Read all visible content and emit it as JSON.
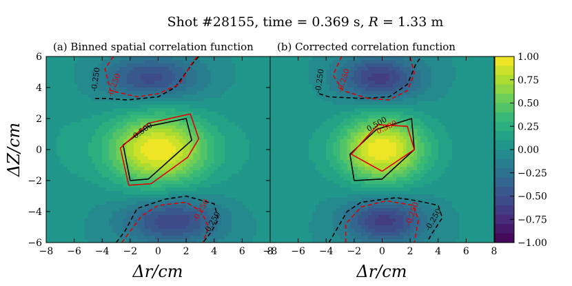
{
  "figure": {
    "title": "Shot #28155, time = 0.369 s, R = 1.33 m",
    "title_parts": {
      "prefix": "Shot #28155, time = 0.369 s, ",
      "var": "R",
      "suffix": " = 1.33 m"
    }
  },
  "chart_data": [
    {
      "type": "heatmap",
      "title": "(a) Binned spatial correlation function",
      "xlabel": "Δr/cm",
      "ylabel": "ΔZ/cm",
      "xlim": [
        -8,
        8
      ],
      "ylim": [
        -6,
        6
      ],
      "xticks": [
        -8,
        -6,
        -4,
        -2,
        0,
        2,
        4,
        6,
        8
      ],
      "yticks": [
        -6,
        -4,
        -2,
        0,
        2,
        4,
        6
      ],
      "field": {
        "peak": {
          "center": [
            0,
            0
          ],
          "value": 1.0,
          "sigma_r": 2.6,
          "sigma_z": 1.6
        },
        "troughs": [
          {
            "center": [
              -0.5,
              4.6
            ],
            "value": -0.55,
            "sigma_r": 2.4,
            "sigma_z": 1.0
          },
          {
            "center": [
              1.0,
              -4.6
            ],
            "value": -0.6,
            "sigma_r": 2.4,
            "sigma_z": 1.0
          }
        ],
        "side_lobes": [
          {
            "center": [
              -7.0,
              0.5
            ],
            "value": 0.08,
            "sigma_r": 1.6,
            "sigma_z": 4.0
          },
          {
            "center": [
              7.0,
              0.5
            ],
            "value": 0.06,
            "sigma_r": 1.6,
            "sigma_z": 4.0
          }
        ],
        "levels_step": 0.1
      },
      "contours": [
        {
          "label": "0.500",
          "color": "#000000",
          "style": "solid",
          "points": [
            [
              -2.0,
              -2.0
            ],
            [
              -0.7,
              -1.9
            ],
            [
              2.4,
              0.6
            ],
            [
              2.0,
              2.0
            ],
            [
              -0.7,
              1.5
            ],
            [
              -2.5,
              0.3
            ],
            [
              -2.0,
              -2.0
            ]
          ]
        },
        {
          "label": "0.500",
          "color": "#e00000",
          "style": "solid",
          "points": [
            [
              -2.1,
              -2.3
            ],
            [
              -0.5,
              -2.2
            ],
            [
              2.1,
              -0.5
            ],
            [
              2.9,
              0.7
            ],
            [
              2.3,
              2.3
            ],
            [
              -0.7,
              1.7
            ],
            [
              -2.7,
              0.1
            ],
            [
              -2.1,
              -2.3
            ]
          ]
        },
        {
          "label": "-0.250",
          "color": "#000000",
          "style": "dashed",
          "points": [
            [
              -4.5,
              3.3
            ],
            [
              -3.8,
              3.3
            ],
            [
              -2.2,
              3.2
            ],
            [
              0.0,
              3.4
            ],
            [
              1.2,
              4.0
            ],
            [
              2.5,
              5.6
            ],
            [
              2.9,
              6.0
            ]
          ]
        },
        {
          "label": "-0.250",
          "color": "#e00000",
          "style": "dashed",
          "points": [
            [
              -3.2,
              6.0
            ],
            [
              -3.8,
              5.2
            ],
            [
              -3.4,
              3.8
            ],
            [
              -1.5,
              3.4
            ],
            [
              0.0,
              3.6
            ],
            [
              1.5,
              4.2
            ],
            [
              2.5,
              5.7
            ],
            [
              2.8,
              6.0
            ]
          ]
        },
        {
          "label": "-0.250",
          "color": "#000000",
          "style": "dashed",
          "points": [
            [
              -3.0,
              -6.0
            ],
            [
              -2.4,
              -5.3
            ],
            [
              -1.5,
              -3.8
            ],
            [
              0.5,
              -3.2
            ],
            [
              2.0,
              -3.0
            ],
            [
              4.0,
              -3.5
            ],
            [
              4.3,
              -4.5
            ],
            [
              3.8,
              -5.3
            ],
            [
              3.2,
              -6.0
            ]
          ]
        },
        {
          "label": "-0.250",
          "color": "#e00000",
          "style": "dashed",
          "points": [
            [
              -2.6,
              -6.0
            ],
            [
              -1.2,
              -4.3
            ],
            [
              0.0,
              -3.6
            ],
            [
              2.0,
              -3.4
            ],
            [
              3.1,
              -4.0
            ],
            [
              3.6,
              -5.0
            ],
            [
              3.2,
              -6.0
            ]
          ]
        }
      ],
      "contour_labels": [
        {
          "text": "0.500",
          "at": [
            -1.0,
            1.1
          ],
          "angle": -36,
          "color": "#000000"
        },
        {
          "text": "-0.250",
          "at": [
            -4.3,
            4.5
          ],
          "angle": -82,
          "color": "#000000"
        },
        {
          "text": "-0.250",
          "at": [
            -3.0,
            4.1
          ],
          "angle": -70,
          "color": "#e00000"
        },
        {
          "text": "-0.250",
          "at": [
            3.2,
            -4.0
          ],
          "angle": -60,
          "color": "#e00000"
        },
        {
          "text": "-0.250",
          "at": [
            4.0,
            -4.8
          ],
          "angle": -60,
          "color": "#000000"
        }
      ]
    },
    {
      "type": "heatmap",
      "title": "(b) Corrected correlation function",
      "xlabel": "Δr/cm",
      "ylabel": "",
      "xlim": [
        -8,
        8
      ],
      "ylim": [
        -6,
        6
      ],
      "xticks": [
        -8,
        -6,
        -4,
        -2,
        0,
        2,
        4,
        6,
        8
      ],
      "yticks": [],
      "field": {
        "peak": {
          "center": [
            0,
            0
          ],
          "value": 1.0,
          "sigma_r": 2.2,
          "sigma_z": 1.5
        },
        "troughs": [
          {
            "center": [
              -0.2,
              4.6
            ],
            "value": -0.65,
            "sigma_r": 2.0,
            "sigma_z": 1.0
          },
          {
            "center": [
              0.2,
              -4.6
            ],
            "value": -0.65,
            "sigma_r": 2.0,
            "sigma_z": 1.0
          }
        ],
        "side_lobes": [
          {
            "center": [
              -7.0,
              0.5
            ],
            "value": 0.08,
            "sigma_r": 1.6,
            "sigma_z": 4.0
          },
          {
            "center": [
              7.0,
              0.5
            ],
            "value": 0.06,
            "sigma_r": 1.6,
            "sigma_z": 4.0
          }
        ],
        "levels_step": 0.1
      },
      "contours": [
        {
          "label": "0.500",
          "color": "#000000",
          "style": "solid",
          "points": [
            [
              -2.0,
              -2.0
            ],
            [
              0.0,
              -1.9
            ],
            [
              2.3,
              0.0
            ],
            [
              2.1,
              2.0
            ],
            [
              -0.4,
              1.3
            ],
            [
              -2.3,
              -0.3
            ],
            [
              -2.0,
              -2.0
            ]
          ]
        },
        {
          "label": "0.500",
          "color": "#e00000",
          "style": "solid",
          "points": [
            [
              0.0,
              -1.4
            ],
            [
              2.3,
              0.0
            ],
            [
              1.8,
              1.5
            ],
            [
              -0.3,
              1.6
            ],
            [
              -2.2,
              -0.3
            ],
            [
              0.0,
              -1.4
            ]
          ]
        },
        {
          "label": "-0.250",
          "color": "#000000",
          "style": "dashed",
          "points": [
            [
              -4.5,
              3.6
            ],
            [
              -3.8,
              3.4
            ],
            [
              -1.5,
              3.3
            ],
            [
              0.5,
              3.4
            ],
            [
              1.8,
              4.2
            ],
            [
              2.4,
              5.5
            ],
            [
              2.8,
              6.0
            ]
          ]
        },
        {
          "label": "-0.250",
          "color": "#e00000",
          "style": "dashed",
          "points": [
            [
              -2.9,
              6.0
            ],
            [
              -3.5,
              4.8
            ],
            [
              -2.8,
              3.8
            ],
            [
              -1.0,
              3.3
            ],
            [
              0.5,
              3.2
            ],
            [
              1.8,
              3.8
            ],
            [
              2.3,
              4.9
            ],
            [
              2.0,
              6.0
            ]
          ]
        },
        {
          "label": "-0.250",
          "color": "#000000",
          "style": "dashed",
          "points": [
            [
              -3.8,
              -6.0
            ],
            [
              -2.5,
              -4.0
            ],
            [
              -1.5,
              -3.4
            ],
            [
              1.0,
              -3.1
            ],
            [
              2.5,
              -3.3
            ],
            [
              4.0,
              -3.6
            ],
            [
              4.3,
              -4.4
            ],
            [
              3.5,
              -5.5
            ],
            [
              3.2,
              -6.0
            ]
          ]
        },
        {
          "label": "-0.250",
          "color": "#e00000",
          "style": "dashed",
          "points": [
            [
              -2.6,
              -6.0
            ],
            [
              -2.6,
              -4.8
            ],
            [
              -1.5,
              -3.7
            ],
            [
              0.3,
              -3.3
            ],
            [
              2.2,
              -3.6
            ],
            [
              2.6,
              -4.5
            ],
            [
              2.3,
              -6.0
            ]
          ]
        }
      ],
      "contour_labels": [
        {
          "text": "0.500",
          "at": [
            -0.3,
            1.5
          ],
          "angle": -30,
          "color": "#000000"
        },
        {
          "text": "0.500",
          "at": [
            0.4,
            1.3
          ],
          "angle": -25,
          "color": "#e00000"
        },
        {
          "text": "-0.250",
          "at": [
            -4.3,
            4.4
          ],
          "angle": -82,
          "color": "#000000"
        },
        {
          "text": "-0.250",
          "at": [
            -2.6,
            4.4
          ],
          "angle": -72,
          "color": "#e00000"
        },
        {
          "text": "-0.250",
          "at": [
            2.3,
            -4.2
          ],
          "angle": -70,
          "color": "#e00000"
        },
        {
          "text": "-0.250",
          "at": [
            3.8,
            -4.6
          ],
          "angle": -60,
          "color": "#000000"
        }
      ]
    }
  ],
  "colorbar": {
    "colormap": "viridis",
    "range": [
      -1.0,
      1.0
    ],
    "ticks": [
      "1.00",
      "0.75",
      "0.50",
      "0.25",
      "0.00",
      "−0.25",
      "−0.50",
      "−0.75",
      "−1.00"
    ],
    "tick_values": [
      1.0,
      0.75,
      0.5,
      0.25,
      0.0,
      -0.25,
      -0.5,
      -0.75,
      -1.0
    ]
  }
}
